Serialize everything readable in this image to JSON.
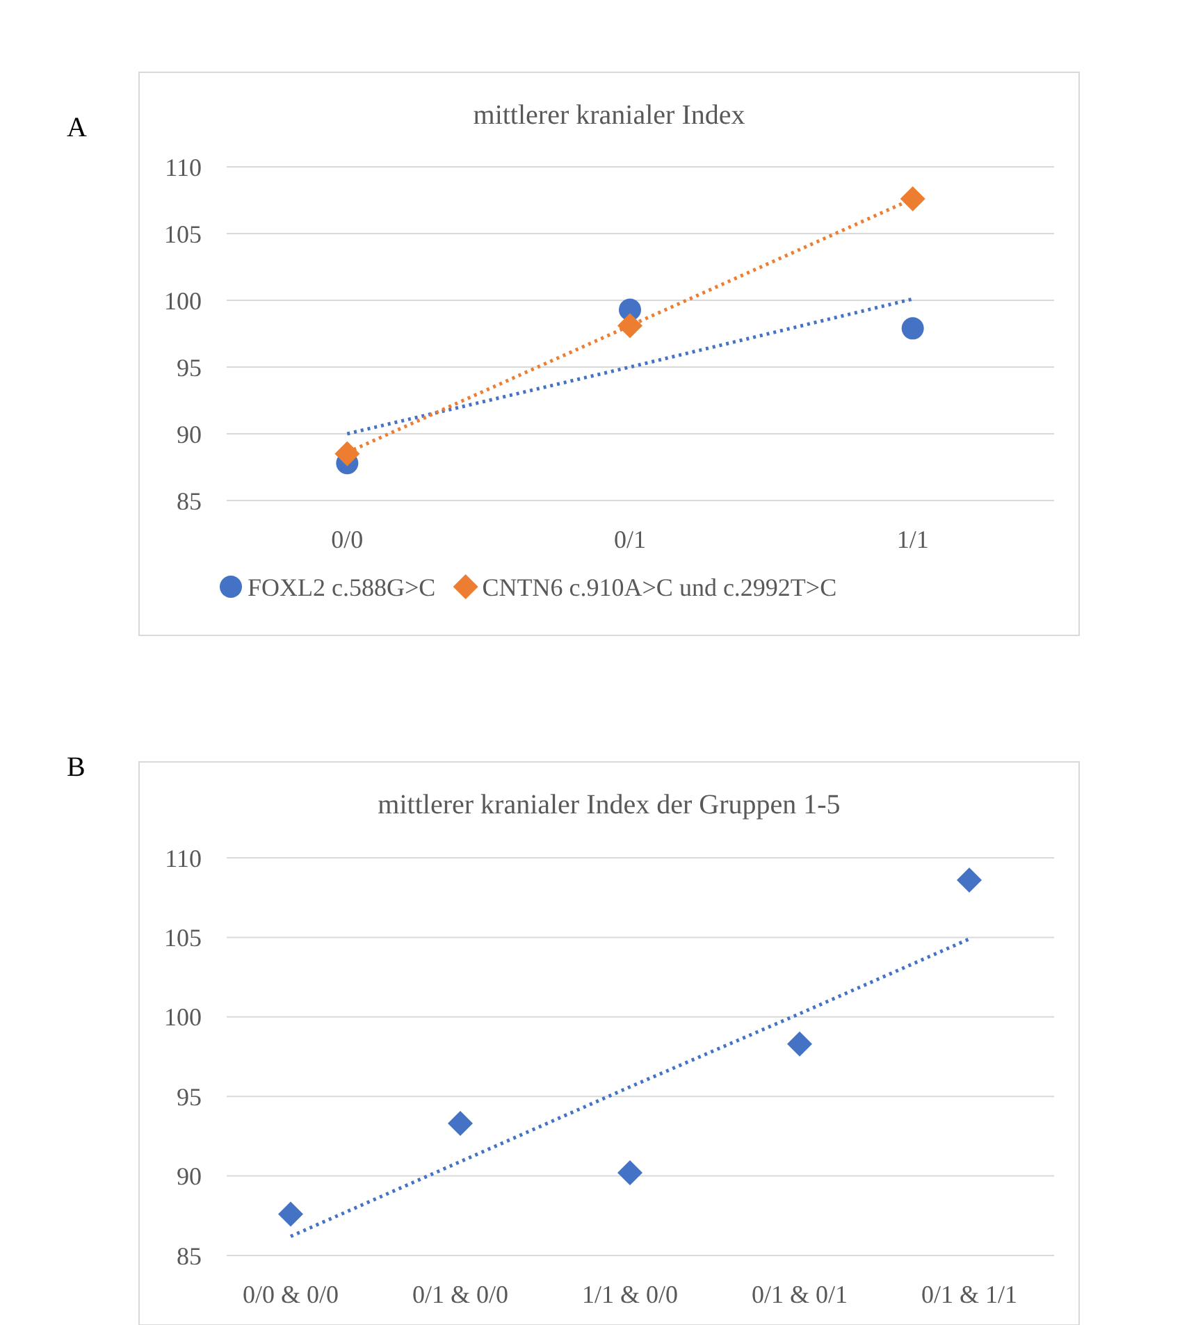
{
  "chart_data": [
    {
      "type": "scatter",
      "title": "mittlerer kranialer Index",
      "annotations": [
        "A"
      ],
      "categories": [
        "0/0",
        "0/1",
        "1/1"
      ],
      "ylim": [
        85,
        110
      ],
      "yticks": [
        85,
        90,
        95,
        100,
        105,
        110
      ],
      "grid": "y",
      "legend": "bottom",
      "series": [
        {
          "name": "FOXL2 c.588G>C",
          "color": "#4472c4",
          "marker": "circle",
          "values": [
            87.8,
            99.3,
            97.9
          ]
        },
        {
          "name": "CNTN6 c.910A>C und c.2992T>C",
          "color": "#ed7d31",
          "marker": "diamond",
          "values": [
            88.5,
            98.1,
            107.6
          ]
        },
        {
          "type": "line",
          "color": "#4472c4",
          "marker": "none",
          "line_style": "dotted",
          "values": [
            90.0,
            95.0,
            100.1
          ]
        },
        {
          "type": "line",
          "color": "#ed7d31",
          "marker": "none",
          "line_style": "dotted",
          "values": [
            88.6,
            98.1,
            107.6
          ]
        }
      ]
    },
    {
      "type": "scatter",
      "title": "mittlerer kranialer Index der Gruppen 1-5",
      "annotations": [
        "B"
      ],
      "categories": [
        "0/0 & 0/0",
        "0/1 & 0/0",
        "1/1 & 0/0",
        "0/1 & 0/1",
        "0/1 & 1/1"
      ],
      "ylim": [
        85,
        110
      ],
      "yticks": [
        85,
        90,
        95,
        100,
        105,
        110
      ],
      "grid": "y",
      "legend": false,
      "series": [
        {
          "color": "#4472c4",
          "marker": "diamond",
          "values": [
            87.6,
            93.3,
            90.2,
            98.3,
            108.6
          ]
        },
        {
          "type": "line",
          "color": "#4472c4",
          "marker": "none",
          "line_style": "dotted",
          "values": [
            86.2,
            90.9,
            95.6,
            100.2,
            104.9
          ]
        }
      ]
    }
  ]
}
